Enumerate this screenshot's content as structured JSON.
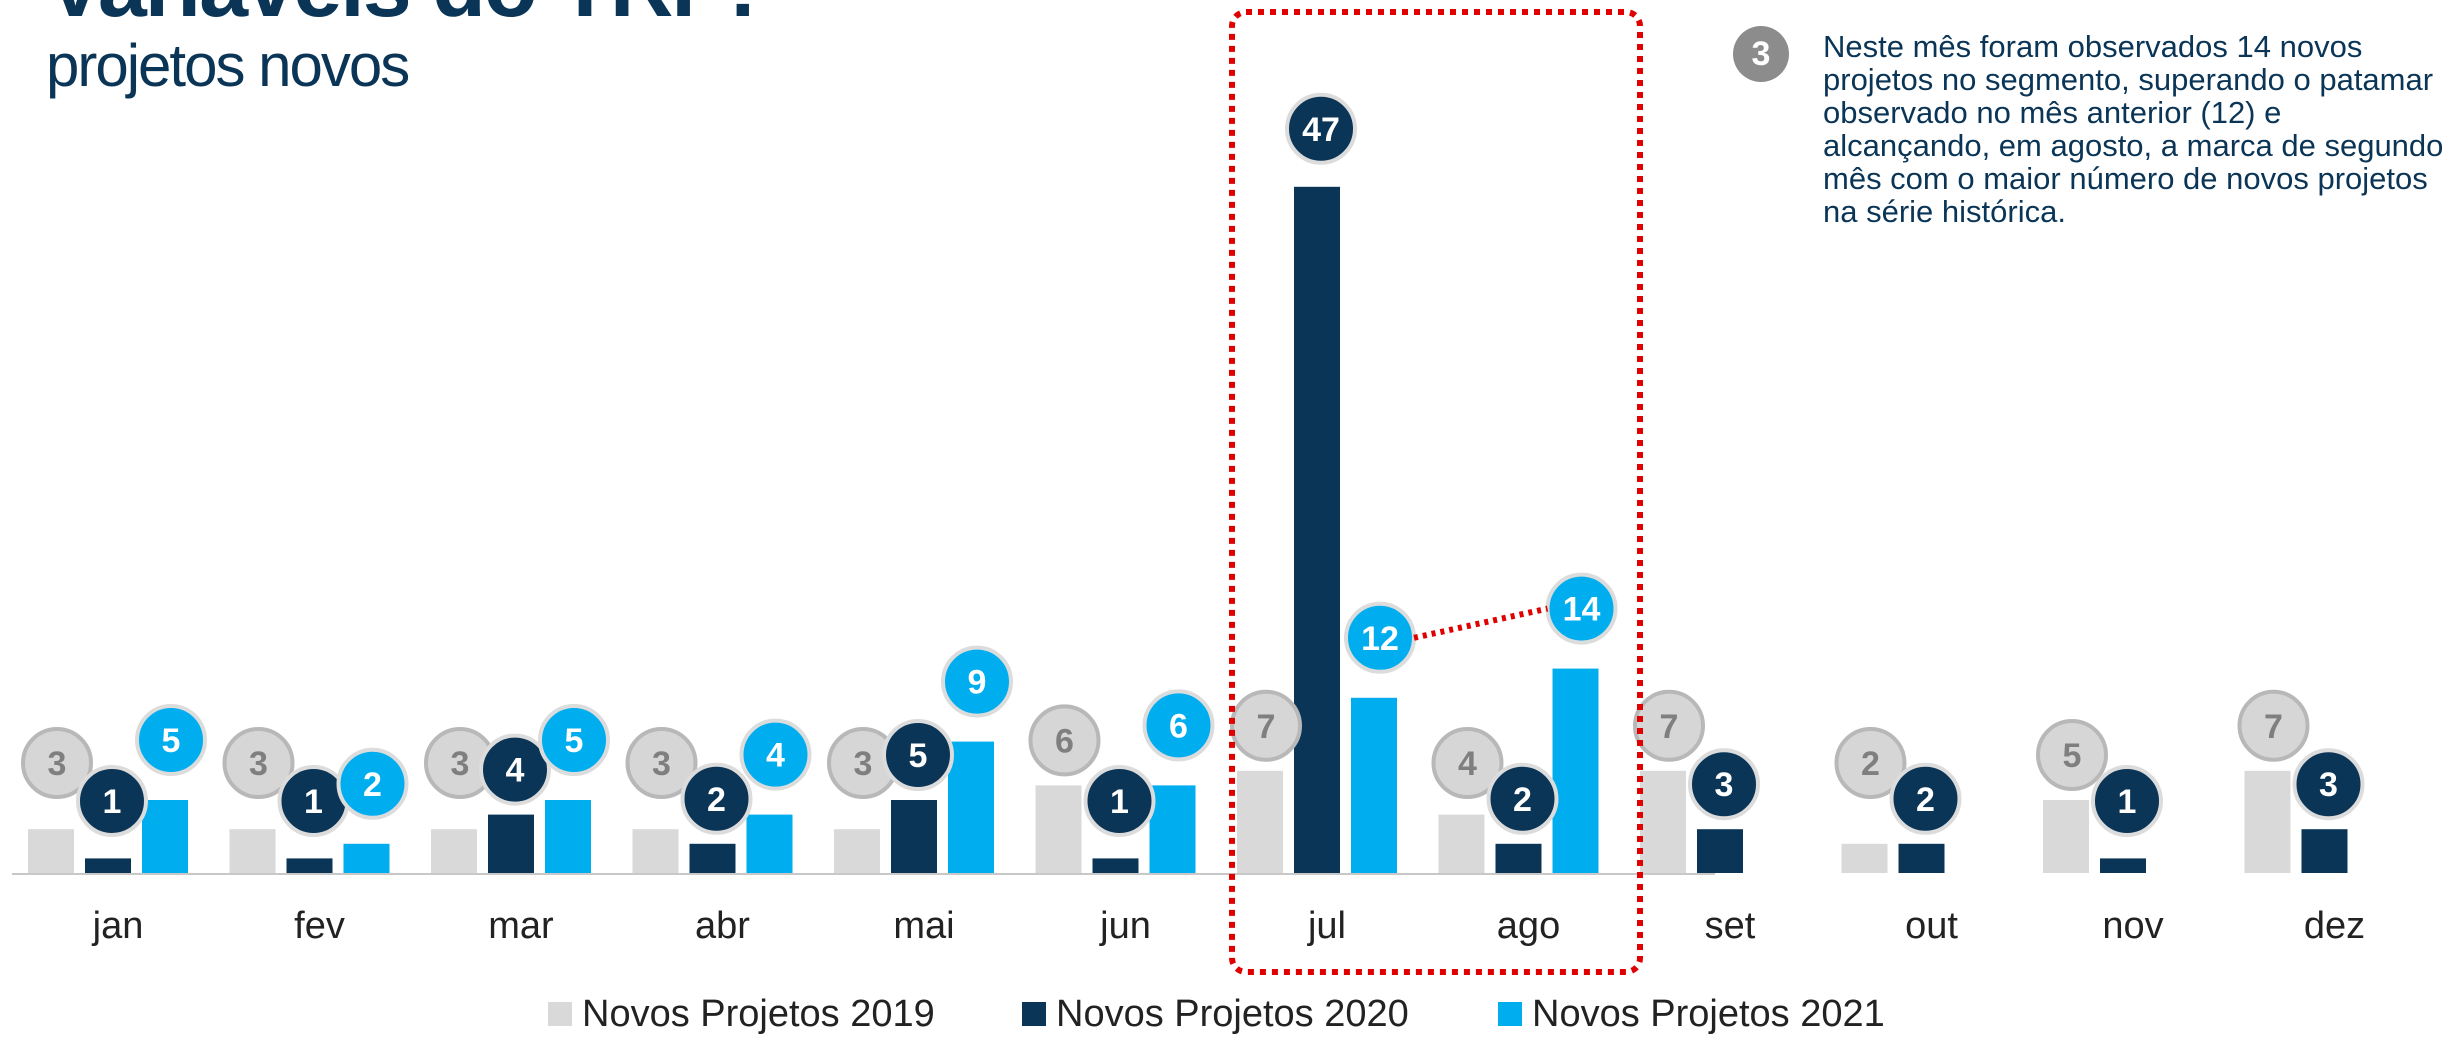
{
  "title": {
    "line1": "Variáveis do TRP:",
    "line2": "projetos novos"
  },
  "note": {
    "badge": "3",
    "text": "Neste mês foram observados 14 novos projetos no segmento, superando o patamar observado no mês anterior (12) e alcançando, em agosto, a marca de segundo mês com o maior número de novos projetos na série histórica."
  },
  "colors": {
    "s2019": "#d9d9d9",
    "s2020": "#0b3556",
    "s2021": "#00adef",
    "highlight": "#e00000",
    "bubble2019_text": "#7f7f7f"
  },
  "chart_data": {
    "type": "bar",
    "categories": [
      "jan",
      "fev",
      "mar",
      "abr",
      "mai",
      "jun",
      "jul",
      "ago",
      "set",
      "out",
      "nov",
      "dez"
    ],
    "series": [
      {
        "name": "Novos Projetos 2019",
        "values": [
          3,
          3,
          3,
          3,
          3,
          6,
          7,
          4,
          7,
          2,
          5,
          7
        ]
      },
      {
        "name": "Novos Projetos 2020",
        "values": [
          1,
          1,
          4,
          2,
          5,
          1,
          47,
          2,
          3,
          2,
          1,
          3
        ]
      },
      {
        "name": "Novos Projetos 2021",
        "values": [
          5,
          2,
          5,
          4,
          9,
          6,
          12,
          14,
          null,
          null,
          null,
          null
        ]
      }
    ],
    "ylim": [
      0,
      50
    ],
    "highlight_categories": [
      "jul",
      "ago"
    ],
    "legend_position": "bottom"
  }
}
